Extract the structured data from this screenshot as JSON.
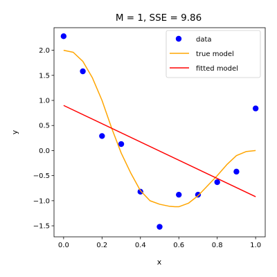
{
  "chart_data": {
    "type": "scatter",
    "title": "M = 1, SSE = 9.86",
    "xlabel": "x",
    "ylabel": "y",
    "xlim": [
      -0.05,
      1.05
    ],
    "ylim": [
      -1.72,
      2.45
    ],
    "xticks": [
      0.0,
      0.2,
      0.4,
      0.6,
      0.8,
      1.0
    ],
    "xtick_labels": [
      "0.0",
      "0.2",
      "0.4",
      "0.6",
      "0.8",
      "1.0"
    ],
    "yticks": [
      -1.5,
      -1.0,
      -0.5,
      0.0,
      0.5,
      1.0,
      1.5,
      2.0
    ],
    "ytick_labels": [
      "−1.5",
      "−1.0",
      "−0.5",
      "0.0",
      "0.5",
      "1.0",
      "1.5",
      "2.0"
    ],
    "legend_position": "top-right",
    "series": [
      {
        "name": "data",
        "kind": "points",
        "color": "#0000ff",
        "x": [
          0.0,
          0.1,
          0.2,
          0.3,
          0.4,
          0.5,
          0.6,
          0.7,
          0.8,
          0.9,
          1.0
        ],
        "y": [
          2.28,
          1.58,
          0.29,
          0.13,
          -0.82,
          -1.52,
          -0.88,
          -0.88,
          -0.63,
          -0.42,
          0.84
        ]
      },
      {
        "name": "true model",
        "kind": "curve",
        "color": "#ffa500",
        "x": [
          0.0,
          0.05,
          0.1,
          0.15,
          0.2,
          0.25,
          0.3,
          0.35,
          0.4,
          0.45,
          0.5,
          0.55,
          0.58,
          0.6,
          0.65,
          0.7,
          0.75,
          0.8,
          0.85,
          0.9,
          0.95,
          1.0
        ],
        "y": [
          2.0,
          1.96,
          1.78,
          1.45,
          1.0,
          0.45,
          -0.05,
          -0.45,
          -0.8,
          -1.0,
          -1.07,
          -1.11,
          -1.12,
          -1.12,
          -1.05,
          -0.9,
          -0.7,
          -0.5,
          -0.28,
          -0.1,
          -0.02,
          0.0
        ]
      },
      {
        "name": "fitted model",
        "kind": "line",
        "color": "#ff0000",
        "x": [
          0.0,
          1.0
        ],
        "y": [
          0.9,
          -0.92
        ]
      }
    ]
  }
}
